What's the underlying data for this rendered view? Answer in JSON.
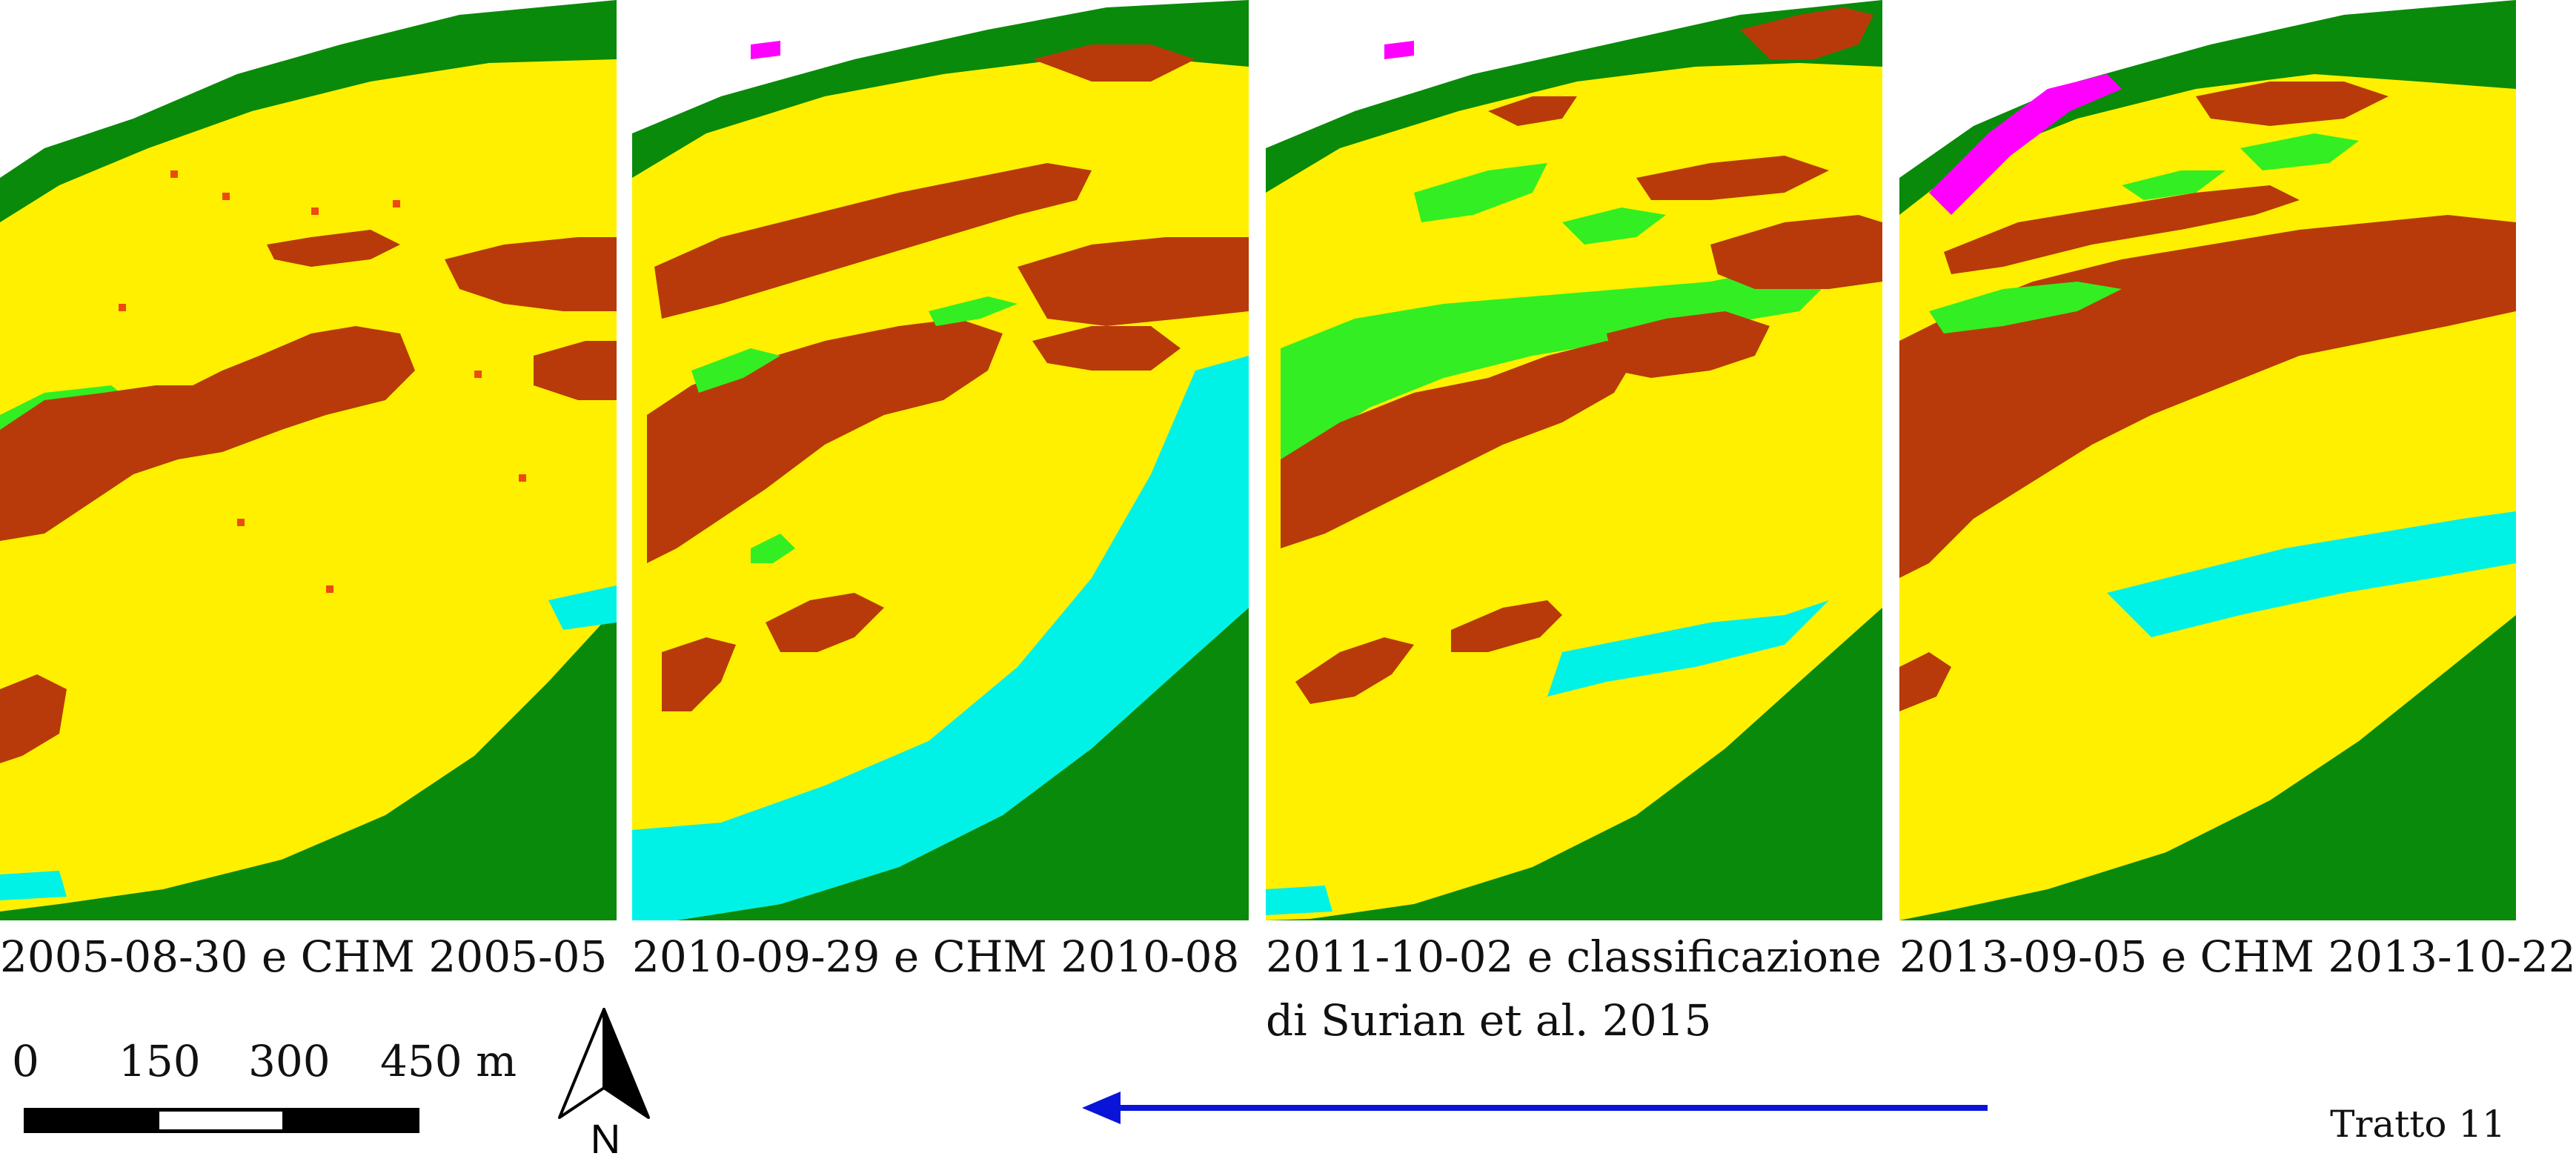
{
  "panels": [
    {
      "caption_lines": [
        "2005-08-30 e CHM 2005-05"
      ]
    },
    {
      "caption_lines": [
        "2010-09-29 e CHM 2010-08"
      ]
    },
    {
      "caption_lines": [
        "2011-10-02 e classificazione",
        "di Surian et al. 2015"
      ]
    },
    {
      "caption_lines": [
        "2013-09-05 e CHM 2013-10-22"
      ]
    }
  ],
  "scale_bar": {
    "labels": [
      "0",
      "150",
      "300",
      "450 m"
    ]
  },
  "north_arrow": {
    "label": "N"
  },
  "flow_direction": {
    "direction": "right-to-left",
    "color": "#0a14d8"
  },
  "section_label": "Tratto 11",
  "legend_colors": {
    "riparian_forest": "#0a8a0a",
    "herbaceous": "#33ee22",
    "gravel_bar": "#fff000",
    "water": "#00f2e6",
    "vegetated_island": "#b83a0a",
    "shrub": "#ee4a10",
    "other": "#ff00ff"
  }
}
